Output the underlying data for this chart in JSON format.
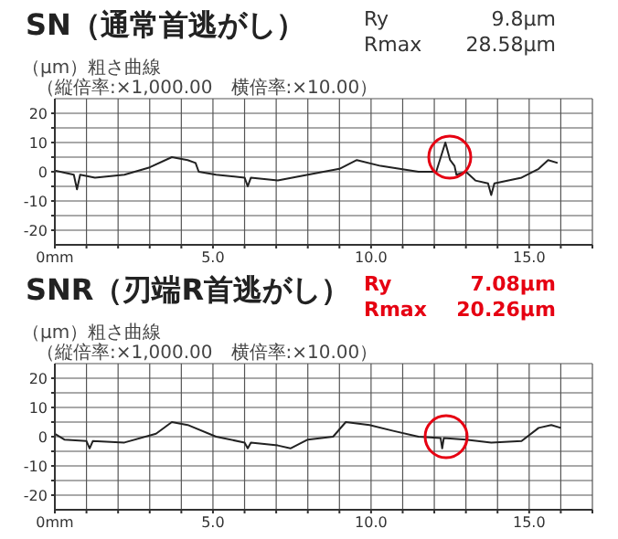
{
  "chart_data": [
    {
      "type": "line",
      "title": "SN（通常首逃がし）",
      "subtitle": "（縦倍率:×1,000.00　横倍率:×10.00）",
      "ylabel": "（μm）粗さ曲線",
      "annotations": [
        "Ry",
        "9.8μm",
        "Rmax",
        "28.58μm"
      ],
      "x": [
        0,
        0.6,
        0.7,
        0.8,
        1.27,
        2.2,
        3.0,
        3.7,
        4.2,
        4.45,
        4.55,
        5.1,
        6.0,
        6.1,
        6.2,
        7.05,
        8.0,
        9.0,
        9.55,
        10.3,
        11.5,
        12.06,
        12.35,
        12.5,
        12.64,
        12.7,
        13.0,
        13.3,
        13.7,
        13.8,
        13.9,
        14.76,
        15.3,
        15.6,
        15.9
      ],
      "series": [
        {
          "color": "#222222",
          "values": [
            0.4,
            -1,
            -6,
            -1,
            -2,
            -1,
            1.5,
            5,
            4,
            3,
            0,
            -1,
            -2,
            -5,
            -2,
            -3,
            -1,
            1,
            4,
            2,
            0,
            0,
            10,
            4,
            2,
            -1,
            0,
            -3,
            -4,
            -8,
            -4,
            -2,
            1,
            4,
            3
          ]
        }
      ],
      "xlim": [
        0,
        17
      ],
      "xticks": [
        {
          "value": 0,
          "label": "0mm"
        },
        {
          "value": 1,
          "label": null
        },
        {
          "value": 2,
          "label": null
        },
        {
          "value": 3,
          "label": null
        },
        {
          "value": 4,
          "label": null
        },
        {
          "value": 5,
          "label": "5.0"
        },
        {
          "value": 6,
          "label": null
        },
        {
          "value": 7,
          "label": null
        },
        {
          "value": 8,
          "label": null
        },
        {
          "value": 9,
          "label": null
        },
        {
          "value": 10,
          "label": "10.0"
        },
        {
          "value": 11,
          "label": null
        },
        {
          "value": 12,
          "label": null
        },
        {
          "value": 13,
          "label": null
        },
        {
          "value": 14,
          "label": null
        },
        {
          "value": 15,
          "label": "15.0"
        },
        {
          "value": 16,
          "label": null
        },
        {
          "value": 17,
          "label": null
        }
      ],
      "ylim": [
        -25,
        25
      ],
      "yticks": [
        -20,
        {
          "value": -15,
          "label": null
        },
        -10,
        {
          "value": -5,
          "label": null
        },
        0,
        {
          "value": 5,
          "label": null
        },
        10,
        {
          "value": 15,
          "label": null
        },
        20
      ],
      "grid": true,
      "marker": "none",
      "line_style": "solid",
      "legend": false
    },
    {
      "type": "line",
      "title": "SNR（刃端R首逃がし）",
      "subtitle": "（縦倍率:×1,000.00　横倍率:×10.00）",
      "ylabel": "（μm）粗さ曲線",
      "annotations": [
        "Ry",
        "7.08μm",
        "Rmax",
        "20.26μm"
      ],
      "x": [
        0,
        0.3,
        1.0,
        1.1,
        1.2,
        2.2,
        3.2,
        3.7,
        4.2,
        5.1,
        6.0,
        6.1,
        6.2,
        7.05,
        7.45,
        8.0,
        8.8,
        9.2,
        9.95,
        10.7,
        11.5,
        12.2,
        12.25,
        12.3,
        13.0,
        13.8,
        14.76,
        15.3,
        15.7,
        16.0
      ],
      "series": [
        {
          "color": "#222222",
          "values": [
            1,
            -1,
            -1.5,
            -4,
            -1.5,
            -2,
            1,
            5,
            4,
            0,
            -2,
            -4,
            -2,
            -3,
            -4,
            -1,
            0,
            5,
            4,
            2,
            0,
            -0.5,
            -4,
            -0.5,
            -1,
            -2,
            -1.5,
            3,
            4,
            3
          ]
        }
      ],
      "xlim": [
        0,
        17
      ],
      "xticks": [
        {
          "value": 0,
          "label": "0mm"
        },
        {
          "value": 1,
          "label": null
        },
        {
          "value": 2,
          "label": null
        },
        {
          "value": 3,
          "label": null
        },
        {
          "value": 4,
          "label": null
        },
        {
          "value": 5,
          "label": "5.0"
        },
        {
          "value": 6,
          "label": null
        },
        {
          "value": 7,
          "label": null
        },
        {
          "value": 8,
          "label": null
        },
        {
          "value": 9,
          "label": null
        },
        {
          "value": 10,
          "label": "10.0"
        },
        {
          "value": 11,
          "label": null
        },
        {
          "value": 12,
          "label": null
        },
        {
          "value": 13,
          "label": null
        },
        {
          "value": 14,
          "label": null
        },
        {
          "value": 15,
          "label": "15.0"
        },
        {
          "value": 16,
          "label": null
        },
        {
          "value": 17,
          "label": null
        }
      ],
      "ylim": [
        -25,
        25
      ],
      "yticks": [
        -20,
        {
          "value": -15,
          "label": null
        },
        -10,
        {
          "value": -5,
          "label": null
        },
        0,
        {
          "value": 5,
          "label": null
        },
        10,
        {
          "value": 15,
          "label": null
        },
        20
      ],
      "grid": true,
      "marker": "none",
      "line_style": "solid",
      "legend": false
    }
  ]
}
